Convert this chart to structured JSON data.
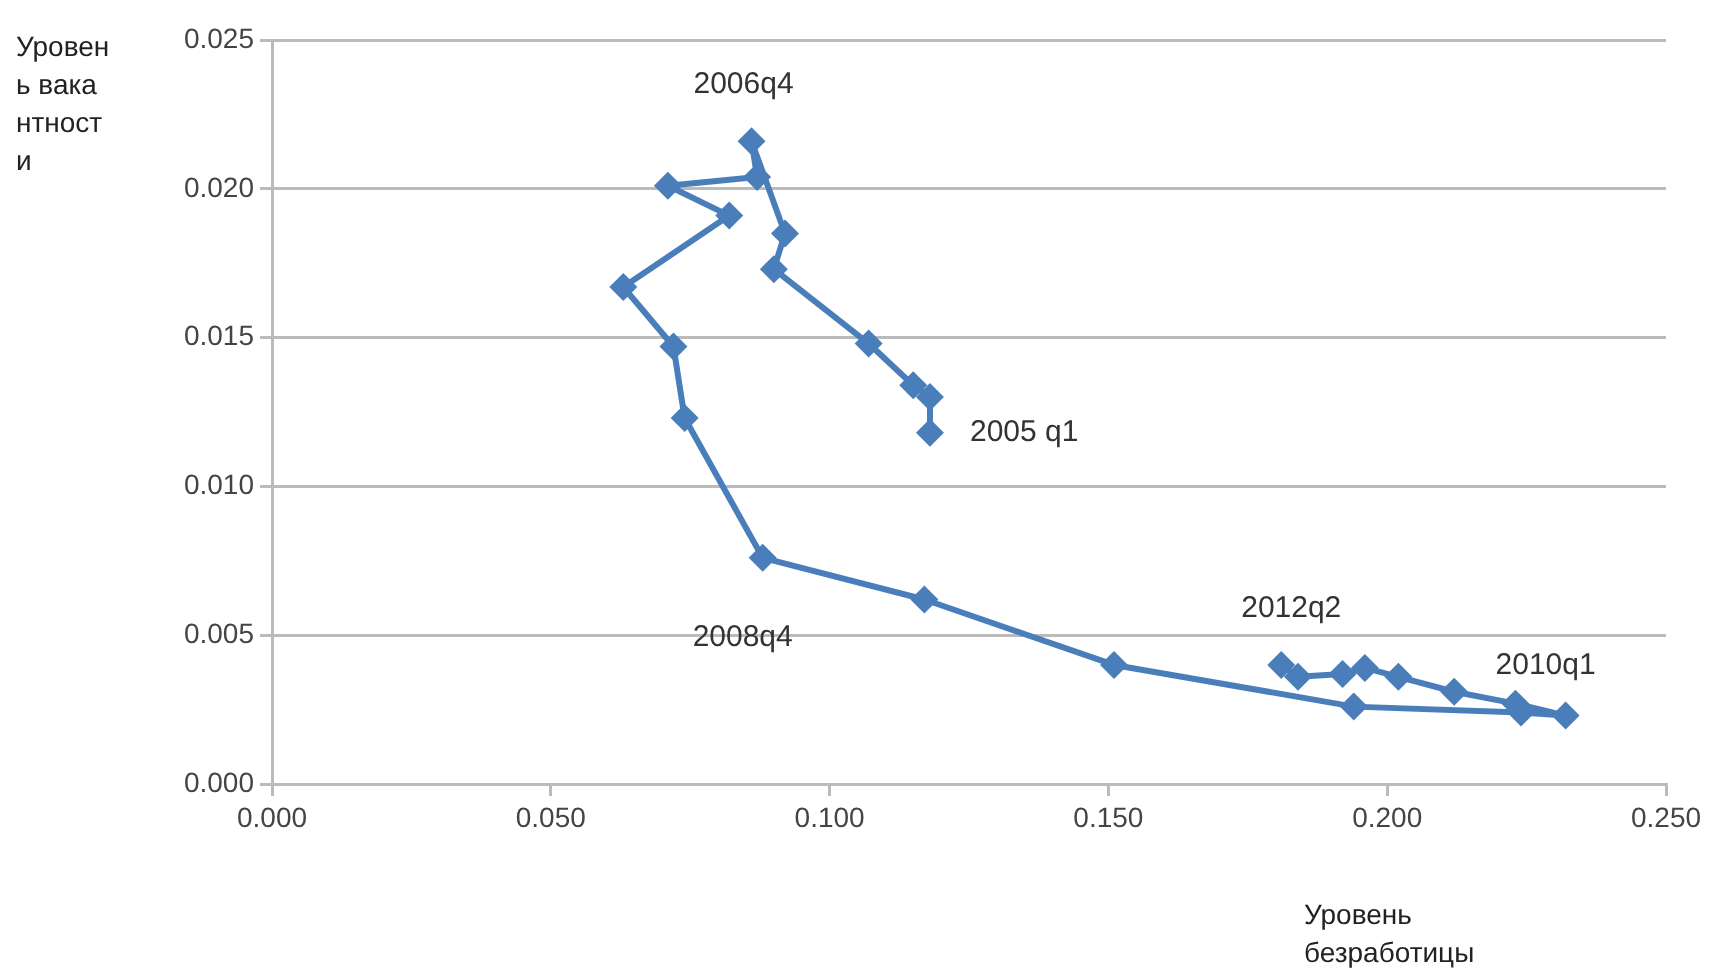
{
  "chart_data": {
    "type": "line",
    "xlabel": "Уровень безработицы",
    "ylabel": "Уровень вакантности",
    "series": [
      {
        "color": "#4a7ebb",
        "x": [
          0.118,
          0.118,
          0.115,
          0.107,
          0.09,
          0.092,
          0.086,
          0.087,
          0.071,
          0.082,
          0.063,
          0.072,
          0.074,
          0.088,
          0.117,
          0.151,
          0.194,
          0.224,
          0.232,
          0.223,
          0.212,
          0.202,
          0.196,
          0.192,
          0.184,
          0.181
        ],
        "values": [
          0.0118,
          0.013,
          0.0134,
          0.0148,
          0.0173,
          0.0185,
          0.0216,
          0.0204,
          0.0201,
          0.0191,
          0.0167,
          0.0147,
          0.0123,
          0.0076,
          0.0062,
          0.004,
          0.0026,
          0.0024,
          0.0023,
          0.0027,
          0.0031,
          0.0036,
          0.0039,
          0.0037,
          0.0036,
          0.004
        ]
      }
    ],
    "xlim": [
      0,
      0.25
    ],
    "xticks": [
      {
        "value": 0,
        "label": "0.000"
      },
      {
        "value": 0.05,
        "label": "0.050"
      },
      {
        "value": 0.1,
        "label": "0.100"
      },
      {
        "value": 0.15,
        "label": "0.150"
      },
      {
        "value": 0.2,
        "label": "0.200"
      },
      {
        "value": 0.25,
        "label": "0.250"
      }
    ],
    "ylim": [
      0,
      0.025
    ],
    "yticks": [
      {
        "value": 0,
        "label": "0.000"
      },
      {
        "value": 0.005,
        "label": "0.005"
      },
      {
        "value": 0.01,
        "label": "0.010"
      },
      {
        "value": 0.015,
        "label": "0.015"
      },
      {
        "value": 0.02,
        "label": "0.020"
      },
      {
        "value": 0.025,
        "label": "0.025"
      }
    ],
    "grid": "y",
    "marker": "diamond",
    "line_style": "solid",
    "legend": false,
    "annotations": [
      {
        "text": "2005 q1",
        "x": 0.118,
        "y": 0.0118
      },
      {
        "text": "2006q4",
        "x": 0.086,
        "y": 0.0216
      },
      {
        "text": "2008q4",
        "x": 0.088,
        "y": 0.0076
      },
      {
        "text": "2010q1",
        "x": 0.232,
        "y": 0.0023
      },
      {
        "text": "2012q2",
        "x": 0.181,
        "y": 0.004
      }
    ]
  }
}
